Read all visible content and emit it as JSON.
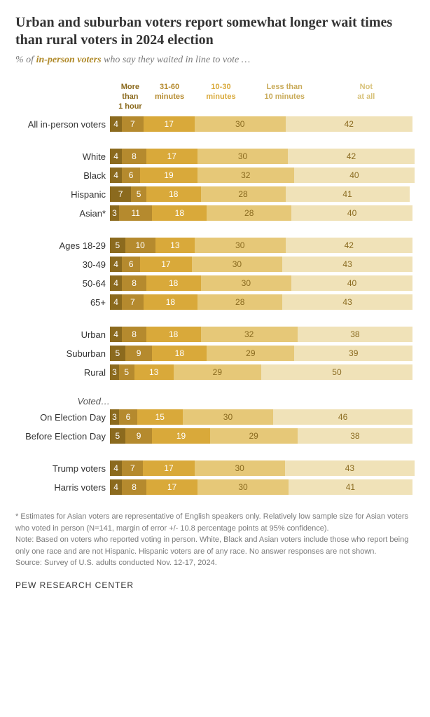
{
  "title": "Urban and suburban voters report somewhat longer wait times than rural voters in 2024 election",
  "subtitle_prefix": "% of ",
  "subtitle_em": "in-person voters",
  "subtitle_suffix": " who say they waited in line to vote …",
  "legend": [
    {
      "label": "More than\n1 hour",
      "color": "#8b6a1e",
      "text": "#ffffff",
      "width_pct": 12
    },
    {
      "label": "31-60\nminutes",
      "color": "#b58a2e",
      "text": "#ffffff",
      "width_pct": 14
    },
    {
      "label": "10-30\nminutes",
      "color": "#d9a93a",
      "text": "#ffffff",
      "width_pct": 20
    },
    {
      "label": "Less than\n10 minutes",
      "color": "#e6c878",
      "text": "#9a7a2a",
      "width_pct": 22
    },
    {
      "label": "Not\nat all",
      "color": "#f0e2b8",
      "text": "#b89a50",
      "width_pct": 32
    }
  ],
  "colors": {
    "seg1": "#8b6a1e",
    "seg2": "#b58a2e",
    "seg3": "#d9a93a",
    "seg4": "#e6c878",
    "seg5": "#f0e2b8",
    "text_light": "#ffffff",
    "text_dark": "#8a6b20"
  },
  "bar_total_width": 432,
  "groups": [
    {
      "header": null,
      "rows": [
        {
          "label": "All in-person voters",
          "values": [
            4,
            7,
            17,
            30,
            42
          ]
        }
      ]
    },
    {
      "header": null,
      "rows": [
        {
          "label": "White",
          "values": [
            4,
            8,
            17,
            30,
            42
          ]
        },
        {
          "label": "Black",
          "values": [
            4,
            6,
            19,
            32,
            40
          ]
        },
        {
          "label": "Hispanic",
          "values": [
            7,
            5,
            18,
            28,
            41
          ]
        },
        {
          "label": "Asian*",
          "values": [
            3,
            11,
            18,
            28,
            40
          ]
        }
      ]
    },
    {
      "header": null,
      "rows": [
        {
          "label": "Ages 18-29",
          "values": [
            5,
            10,
            13,
            30,
            42
          ]
        },
        {
          "label": "30-49",
          "values": [
            4,
            6,
            17,
            30,
            43
          ]
        },
        {
          "label": "50-64",
          "values": [
            4,
            8,
            18,
            30,
            40
          ]
        },
        {
          "label": "65+",
          "values": [
            4,
            7,
            18,
            28,
            43
          ]
        }
      ]
    },
    {
      "header": null,
      "rows": [
        {
          "label": "Urban",
          "values": [
            4,
            8,
            18,
            32,
            38
          ]
        },
        {
          "label": "Suburban",
          "values": [
            5,
            9,
            18,
            29,
            39
          ]
        },
        {
          "label": "Rural",
          "values": [
            3,
            5,
            13,
            29,
            50
          ]
        }
      ]
    },
    {
      "header": "Voted…",
      "rows": [
        {
          "label": "On Election Day",
          "values": [
            3,
            6,
            15,
            30,
            46
          ]
        },
        {
          "label": "Before Election Day",
          "values": [
            5,
            9,
            19,
            29,
            38
          ]
        }
      ]
    },
    {
      "header": null,
      "rows": [
        {
          "label": "Trump voters",
          "values": [
            4,
            7,
            17,
            30,
            43
          ]
        },
        {
          "label": "Harris voters",
          "values": [
            4,
            8,
            17,
            30,
            41
          ]
        }
      ]
    }
  ],
  "note1": "* Estimates for Asian voters are representative of English speakers only. Relatively low sample size for Asian voters who voted in person (N=141, margin of error +/- 10.8 percentage points at 95% confidence).",
  "note2": "Note: Based on voters who reported voting in person. White, Black and Asian voters include those who report being only one race and are not Hispanic. Hispanic voters are of any race. No answer responses are not shown.",
  "source": "Source: Survey of U.S. adults conducted Nov. 12-17, 2024.",
  "footer": "PEW RESEARCH CENTER"
}
